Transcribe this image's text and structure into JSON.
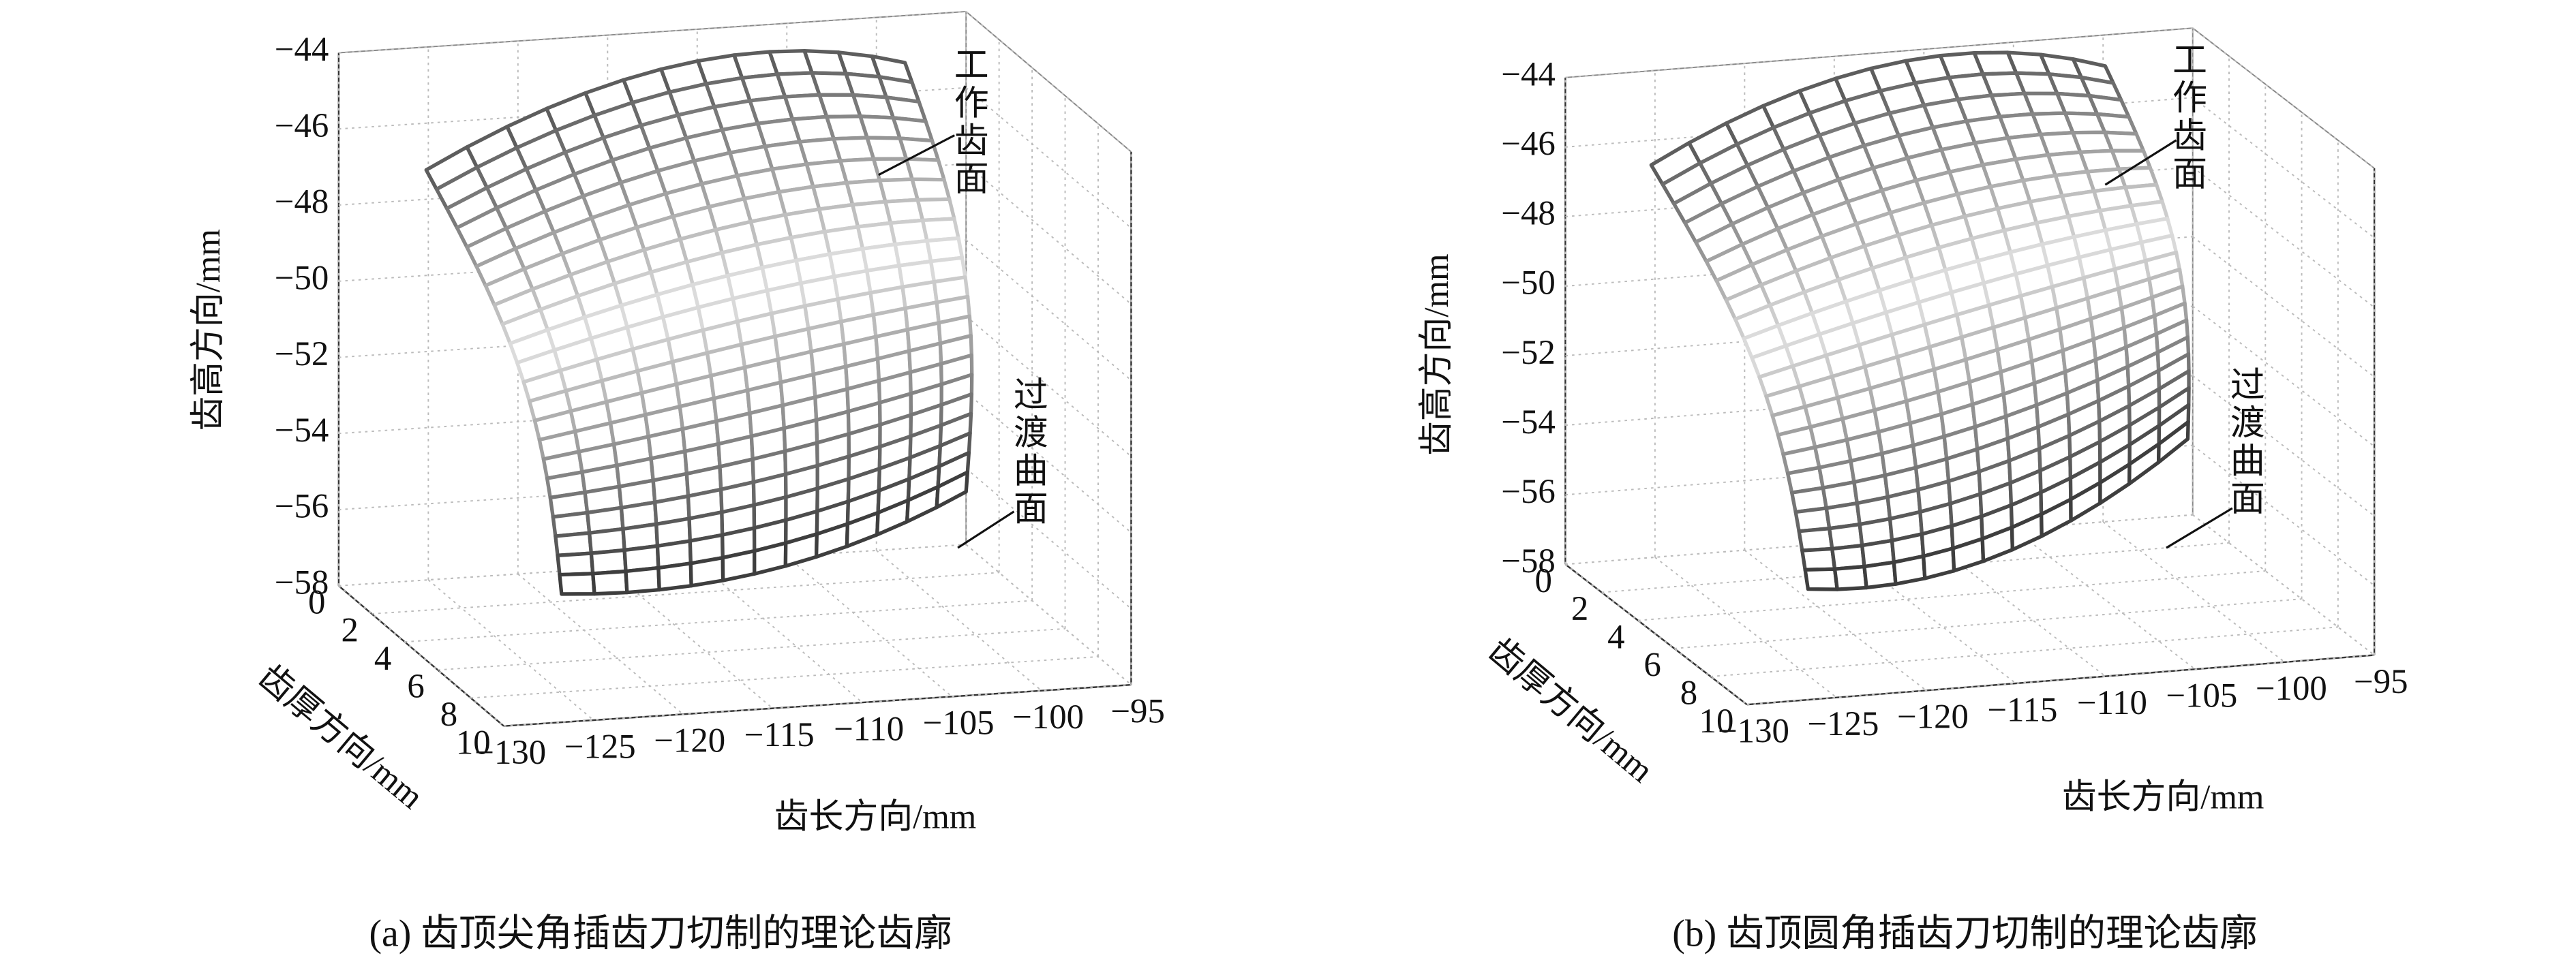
{
  "chart_data": [
    {
      "type": "surface3d",
      "caption": "(a) 齿顶尖角插齿刀切制的理论齿廓",
      "xlabel": "齿长方向/mm",
      "ylabel": "齿厚方向/mm",
      "zlabel": "齿高方向/mm",
      "xlim": [
        -130,
        -95
      ],
      "ylim": [
        0,
        10
      ],
      "zlim": [
        -58,
        -44
      ],
      "xticks": [
        {
          "value": -130,
          "label": "−130"
        },
        {
          "value": -125,
          "label": "−125"
        },
        {
          "value": -120,
          "label": "−120"
        },
        {
          "value": -115,
          "label": "−115"
        },
        {
          "value": -110,
          "label": "−110"
        },
        {
          "value": -105,
          "label": "−105"
        },
        {
          "value": -100,
          "label": "−100"
        },
        {
          "value": -95,
          "label": "−95"
        }
      ],
      "yticks": [
        0,
        2,
        4,
        6,
        8,
        10
      ],
      "zticks": [
        {
          "value": -58,
          "label": "−58"
        },
        {
          "value": -56,
          "label": "−56"
        },
        {
          "value": -54,
          "label": "−54"
        },
        {
          "value": -52,
          "label": "−52"
        },
        {
          "value": -50,
          "label": "−50"
        },
        {
          "value": -48,
          "label": "−48"
        },
        {
          "value": -46,
          "label": "−46"
        },
        {
          "value": -44,
          "label": "−44"
        }
      ],
      "annotations": [
        "工作齿面",
        "过渡曲面"
      ],
      "grid": true
    },
    {
      "type": "surface3d",
      "caption": "(b) 齿顶圆角插齿刀切制的理论齿廓",
      "xlabel": "齿长方向/mm",
      "ylabel": "齿厚方向/mm",
      "zlabel": "齿高方向/mm",
      "xlim": [
        -130,
        -95
      ],
      "ylim": [
        0,
        10
      ],
      "zlim": [
        -58,
        -44
      ],
      "xticks": [
        {
          "value": -130,
          "label": "−130"
        },
        {
          "value": -125,
          "label": "−125"
        },
        {
          "value": -120,
          "label": "−120"
        },
        {
          "value": -115,
          "label": "−115"
        },
        {
          "value": -110,
          "label": "−110"
        },
        {
          "value": -105,
          "label": "−105"
        },
        {
          "value": -100,
          "label": "−100"
        },
        {
          "value": -95,
          "label": "−95"
        }
      ],
      "yticks": [
        0,
        2,
        4,
        6,
        8,
        10
      ],
      "zticks": [
        {
          "value": -58,
          "label": "−58"
        },
        {
          "value": -56,
          "label": "−56"
        },
        {
          "value": -54,
          "label": "−54"
        },
        {
          "value": -52,
          "label": "−52"
        },
        {
          "value": -50,
          "label": "−50"
        },
        {
          "value": -48,
          "label": "−48"
        },
        {
          "value": -46,
          "label": "−46"
        },
        {
          "value": -44,
          "label": "−44"
        }
      ],
      "annotations": [
        "工作齿面",
        "过渡曲面"
      ],
      "grid": true
    }
  ]
}
